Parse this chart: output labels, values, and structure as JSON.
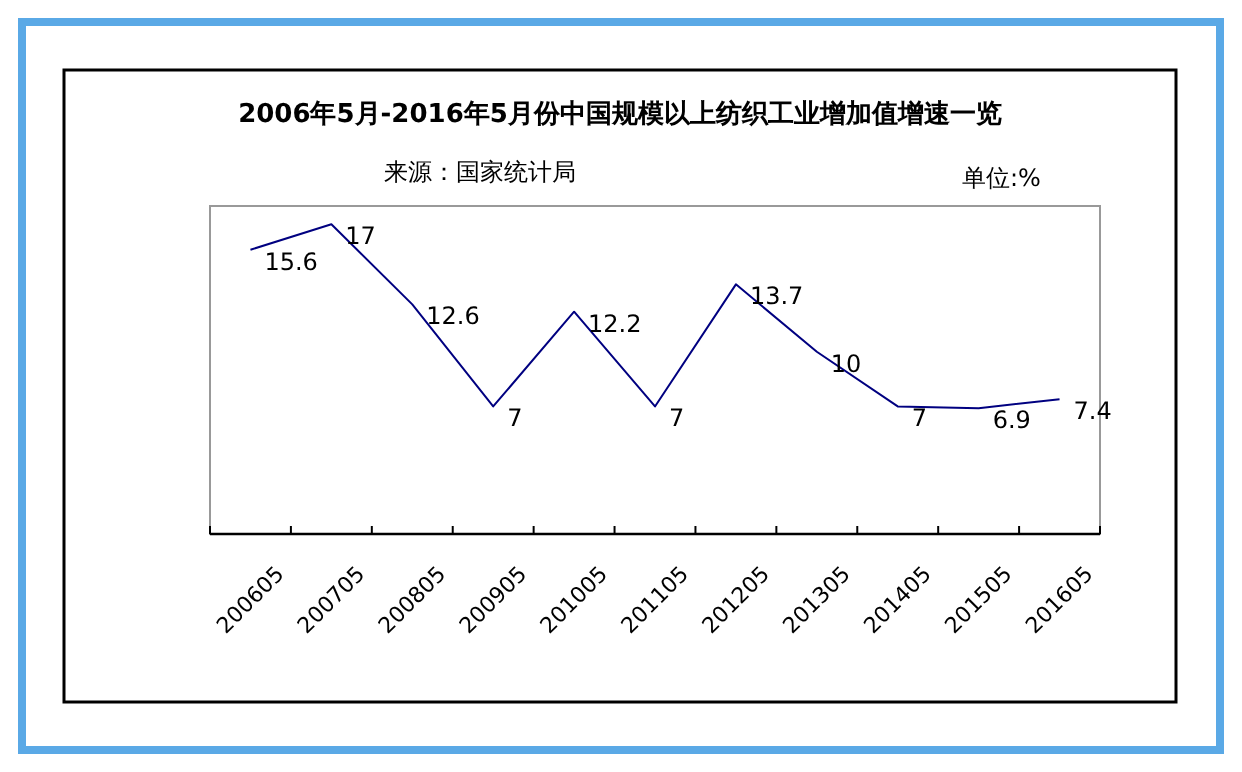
{
  "chart_data": {
    "type": "line",
    "title": "2006年5月-2016年5月份中国规模以上纺织工业增加值增速一览",
    "subtitle": "来源：国家统计局",
    "annotations": [
      "单位:%"
    ],
    "categories": [
      "200605",
      "200705",
      "200805",
      "200905",
      "201005",
      "201105",
      "201205",
      "201305",
      "201405",
      "201505",
      "201605"
    ],
    "series": [
      {
        "color": "#000080",
        "values": [
          15.6,
          17,
          12.6,
          7,
          12.2,
          7,
          13.7,
          10,
          7,
          6.9,
          7.4
        ]
      }
    ],
    "ylim": [
      0,
      18
    ],
    "tick_labels": "x",
    "data_labels": true,
    "grid": false,
    "legend": false,
    "marker": "none",
    "line_style": "solid"
  }
}
